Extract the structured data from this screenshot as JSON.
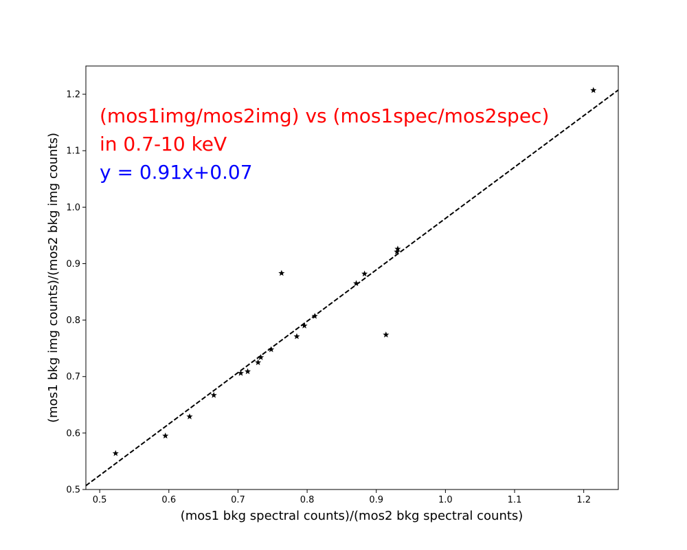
{
  "chart_data": {
    "type": "scatter",
    "xlabel": "(mos1 bkg spectral counts)/(mos2 bkg spectral counts)",
    "ylabel": "(mos1 bkg img counts)/(mos2 bkg img counts)",
    "xlim": [
      0.48,
      1.25
    ],
    "ylim": [
      0.5,
      1.25
    ],
    "x_ticks": [
      0.5,
      0.6,
      0.7,
      0.8,
      0.9,
      1.0,
      1.1,
      1.2
    ],
    "y_ticks": [
      0.5,
      0.6,
      0.7,
      0.8,
      0.9,
      1.0,
      1.1,
      1.2
    ],
    "grid": false,
    "marker": "star",
    "marker_color": "#000000",
    "points": [
      {
        "x": 0.523,
        "y": 0.564
      },
      {
        "x": 0.595,
        "y": 0.595
      },
      {
        "x": 0.63,
        "y": 0.629
      },
      {
        "x": 0.665,
        "y": 0.667
      },
      {
        "x": 0.704,
        "y": 0.706
      },
      {
        "x": 0.714,
        "y": 0.709
      },
      {
        "x": 0.729,
        "y": 0.725
      },
      {
        "x": 0.733,
        "y": 0.734
      },
      {
        "x": 0.748,
        "y": 0.748
      },
      {
        "x": 0.763,
        "y": 0.883
      },
      {
        "x": 0.785,
        "y": 0.771
      },
      {
        "x": 0.796,
        "y": 0.79
      },
      {
        "x": 0.811,
        "y": 0.807
      },
      {
        "x": 0.871,
        "y": 0.865
      },
      {
        "x": 0.883,
        "y": 0.882
      },
      {
        "x": 0.914,
        "y": 0.774
      },
      {
        "x": 0.93,
        "y": 0.921
      },
      {
        "x": 0.931,
        "y": 0.926
      },
      {
        "x": 1.214,
        "y": 1.207
      }
    ],
    "fit_line": {
      "slope": 0.91,
      "intercept": 0.07,
      "style": "dashed",
      "color": "#000000"
    },
    "annotations": [
      {
        "text": "(mos1img/mos2img) vs (mos1spec/mos2spec)",
        "color": "#ff0000"
      },
      {
        "text": "in 0.7-10 keV",
        "color": "#ff0000"
      },
      {
        "text": "y = 0.91x+0.07",
        "color": "#0000ff"
      }
    ]
  }
}
